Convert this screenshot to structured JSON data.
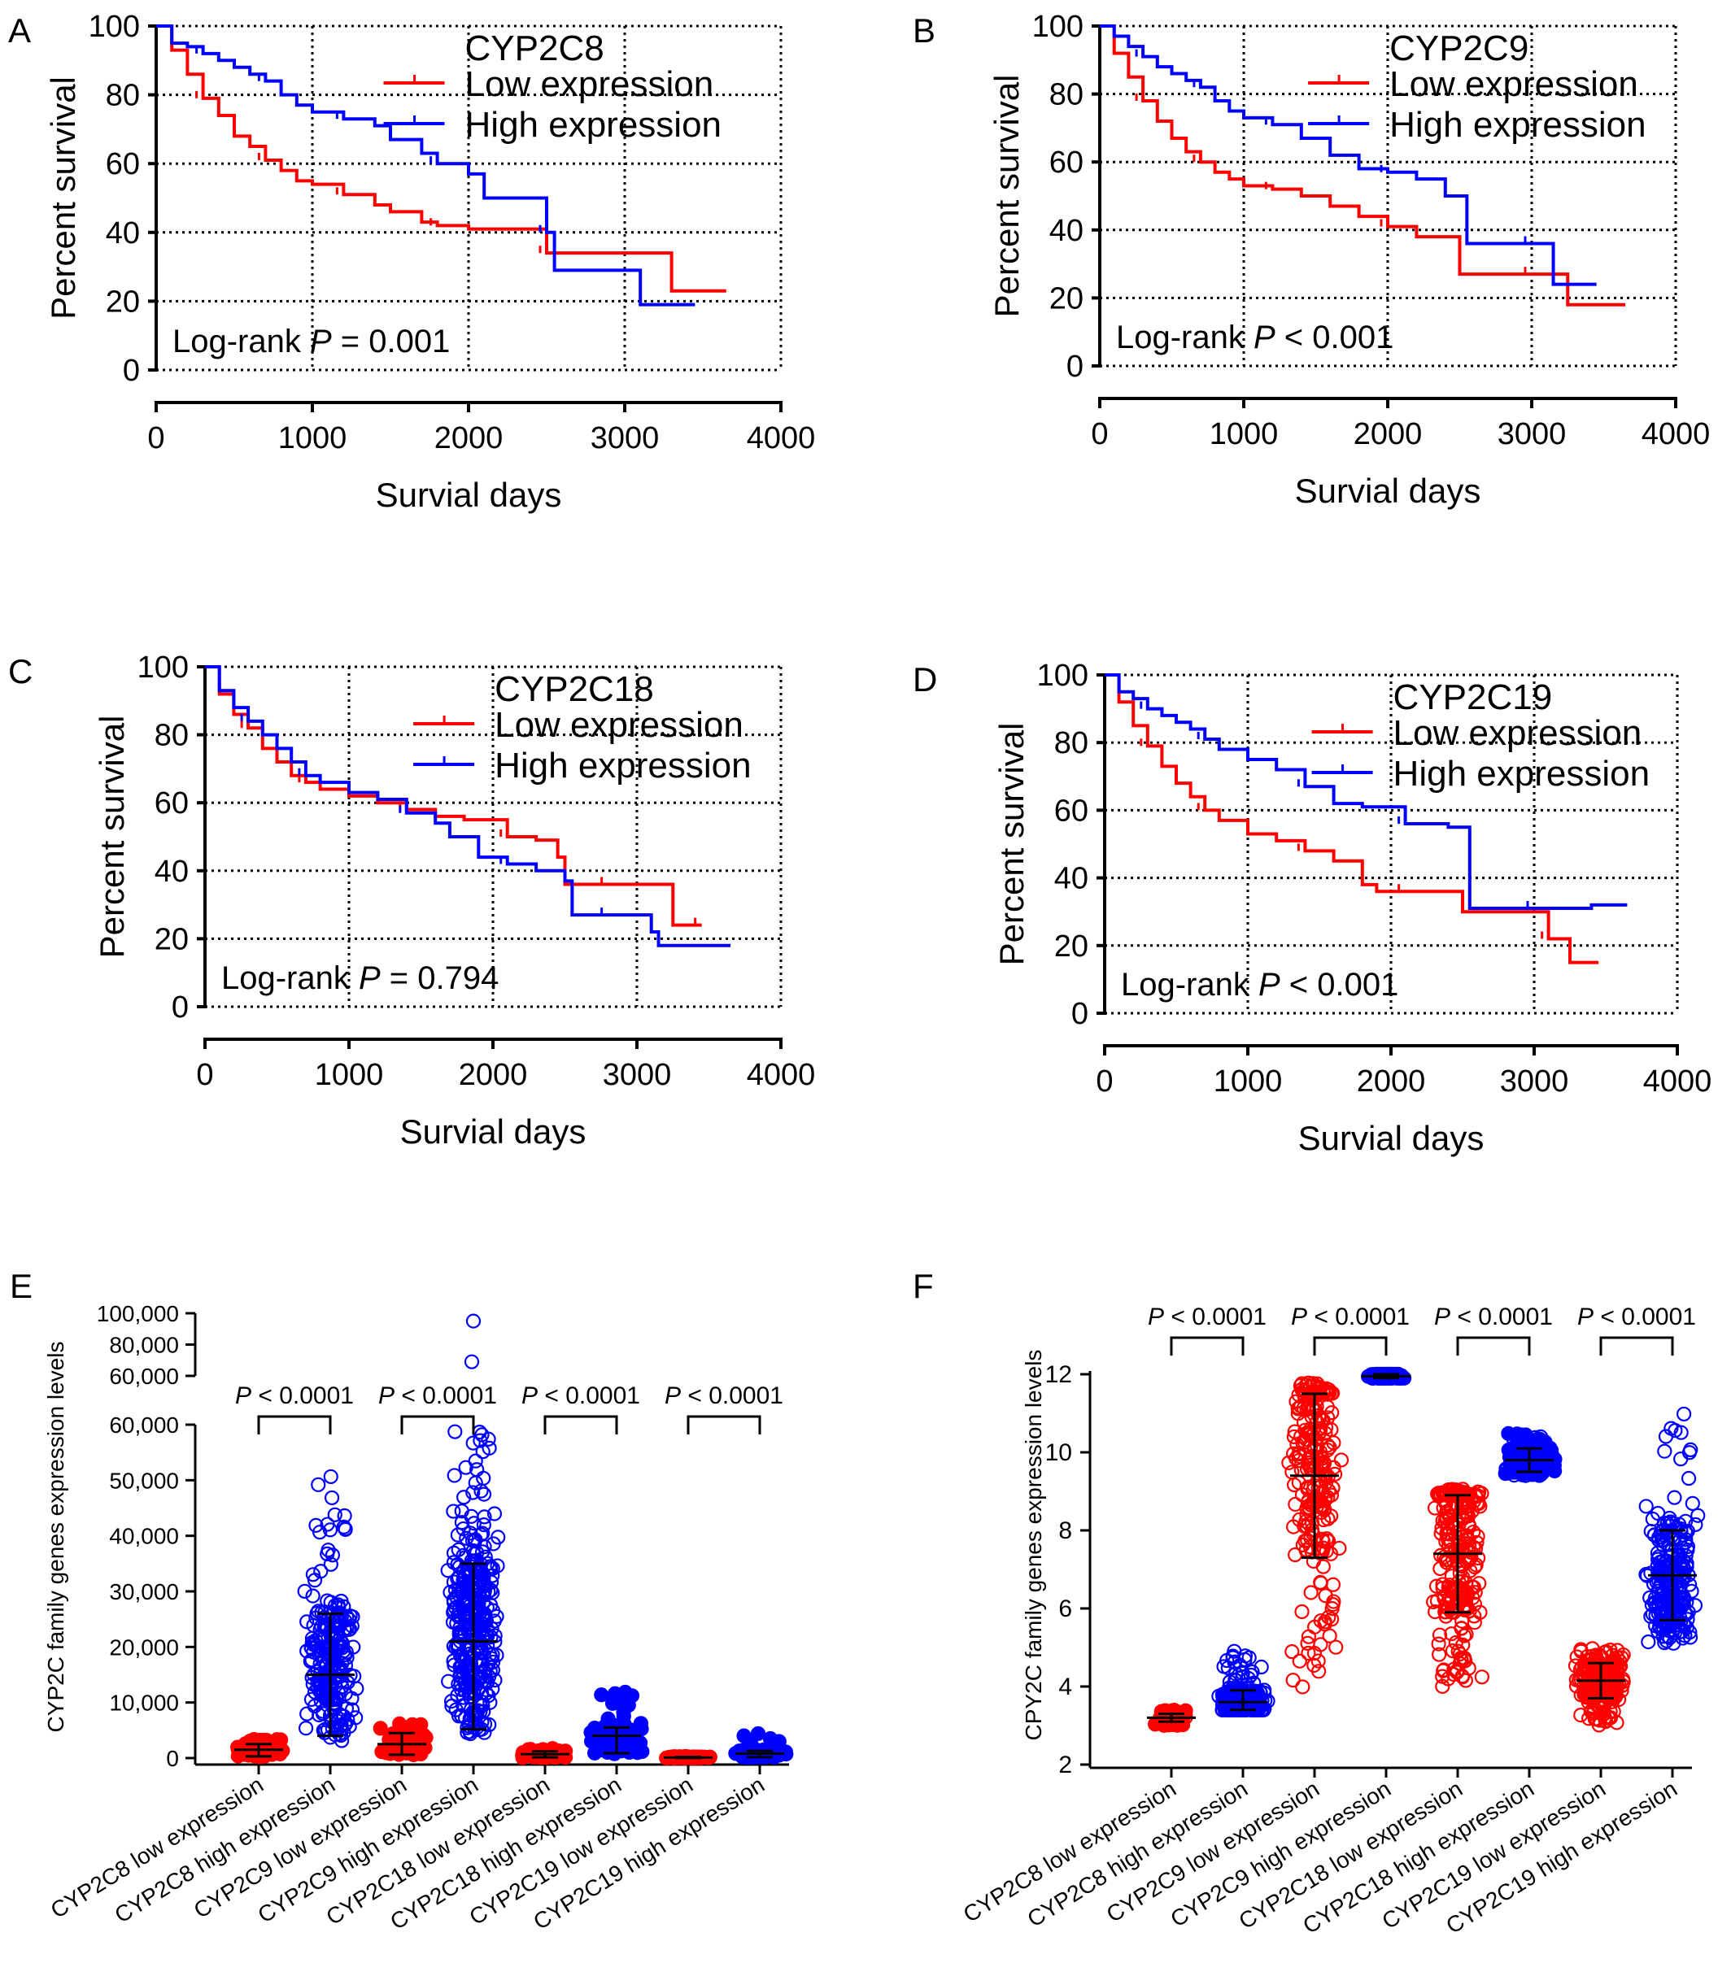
{
  "colors": {
    "low": "#ff0000",
    "high": "#0000ff",
    "axis": "#000000",
    "grid": "#000000"
  },
  "chart_data": [
    {
      "panel": "A",
      "type": "line",
      "title": "CYP2C8",
      "xlabel": "Survial days",
      "ylabel": "Percent survival",
      "xlim": [
        0,
        4000
      ],
      "ylim": [
        0,
        100
      ],
      "xticks": [
        "0",
        "1000",
        "2000",
        "3000",
        "4000"
      ],
      "yticks": [
        "0",
        "20",
        "40",
        "60",
        "80",
        "100"
      ],
      "grid": true,
      "legend_position": "top-right",
      "pvalue": {
        "prefix": "Log-rank ",
        "p": "P",
        "rest": " = 0.001"
      },
      "series": [
        {
          "name": "Low expression",
          "color": "#ff0000",
          "x": [
            0,
            100,
            200,
            300,
            400,
            500,
            600,
            700,
            800,
            900,
            1000,
            1200,
            1400,
            1500,
            1700,
            1800,
            2000,
            2200,
            2450,
            2500,
            3250,
            3300,
            3650
          ],
          "y": [
            100,
            93,
            86,
            79,
            74,
            68,
            65,
            61,
            58,
            55,
            54,
            51,
            48,
            46,
            43,
            42,
            41,
            41,
            41,
            34,
            34,
            23,
            23
          ]
        },
        {
          "name": "High expression",
          "color": "#0000ff",
          "x": [
            0,
            100,
            200,
            300,
            400,
            500,
            600,
            700,
            800,
            900,
            1000,
            1200,
            1400,
            1500,
            1700,
            1800,
            2000,
            2100,
            2300,
            2500,
            2550,
            3100,
            3450
          ],
          "y": [
            100,
            95,
            94,
            92,
            90,
            88,
            86,
            84,
            80,
            77,
            75,
            73,
            71,
            67,
            63,
            60,
            57,
            50,
            50,
            40,
            29,
            19,
            19
          ]
        }
      ]
    },
    {
      "panel": "B",
      "type": "line",
      "title": "CYP2C9",
      "xlabel": "Survial days",
      "ylabel": "Percent survival",
      "xlim": [
        0,
        4000
      ],
      "ylim": [
        0,
        100
      ],
      "xticks": [
        "0",
        "1000",
        "2000",
        "3000",
        "4000"
      ],
      "yticks": [
        "0",
        "20",
        "40",
        "60",
        "80",
        "100"
      ],
      "grid": true,
      "legend_position": "top-right",
      "pvalue": {
        "prefix": "Log-rank ",
        "p": "P",
        "rest": " < 0.001"
      },
      "series": [
        {
          "name": "Low expression",
          "color": "#ff0000",
          "x": [
            0,
            100,
            200,
            300,
            400,
            500,
            600,
            700,
            800,
            900,
            1000,
            1200,
            1400,
            1600,
            1800,
            2000,
            2200,
            2500,
            2800,
            3000,
            3250,
            3650
          ],
          "y": [
            100,
            92,
            85,
            78,
            72,
            67,
            63,
            60,
            57,
            55,
            53,
            52,
            50,
            47,
            44,
            41,
            38,
            27,
            27,
            27,
            18,
            18
          ]
        },
        {
          "name": "High expression",
          "color": "#0000ff",
          "x": [
            0,
            100,
            200,
            300,
            400,
            500,
            600,
            700,
            800,
            900,
            1000,
            1200,
            1400,
            1600,
            1800,
            2000,
            2200,
            2400,
            2550,
            3000,
            3150,
            3450
          ],
          "y": [
            100,
            97,
            94,
            91,
            88,
            86,
            84,
            82,
            78,
            75,
            73,
            71,
            67,
            62,
            58,
            57,
            55,
            50,
            36,
            36,
            24,
            24
          ]
        }
      ]
    },
    {
      "panel": "C",
      "type": "line",
      "title": "CYP2C18",
      "xlabel": "Survial days",
      "ylabel": "Percent survival",
      "xlim": [
        0,
        4000
      ],
      "ylim": [
        0,
        100
      ],
      "xticks": [
        "0",
        "1000",
        "2000",
        "3000",
        "4000"
      ],
      "yticks": [
        "0",
        "20",
        "40",
        "60",
        "80",
        "100"
      ],
      "grid": true,
      "legend_position": "top-right",
      "pvalue": {
        "prefix": "Log-rank ",
        "p": "P",
        "rest": " = 0.794"
      },
      "series": [
        {
          "name": "Low expression",
          "color": "#ff0000",
          "x": [
            0,
            100,
            200,
            300,
            400,
            500,
            600,
            700,
            800,
            1000,
            1200,
            1400,
            1600,
            1800,
            2000,
            2100,
            2300,
            2450,
            2500,
            2800,
            3050,
            3250,
            3300,
            3450
          ],
          "y": [
            100,
            92,
            86,
            82,
            76,
            72,
            68,
            66,
            64,
            62,
            60,
            58,
            56,
            55,
            55,
            50,
            49,
            44,
            36,
            36,
            36,
            24,
            24,
            24
          ]
        },
        {
          "name": "High expression",
          "color": "#0000ff",
          "x": [
            0,
            100,
            200,
            300,
            400,
            500,
            600,
            700,
            800,
            1000,
            1200,
            1400,
            1600,
            1700,
            1900,
            2100,
            2300,
            2500,
            2550,
            2800,
            3100,
            3150,
            3650
          ],
          "y": [
            100,
            93,
            88,
            84,
            80,
            76,
            72,
            68,
            66,
            63,
            61,
            57,
            54,
            50,
            44,
            42,
            40,
            37,
            27,
            27,
            22,
            18,
            18
          ]
        }
      ]
    },
    {
      "panel": "D",
      "type": "line",
      "title": "CYP2C19",
      "xlabel": "Survial days",
      "ylabel": "Percent survival",
      "xlim": [
        0,
        4000
      ],
      "ylim": [
        0,
        100
      ],
      "xticks": [
        "0",
        "1000",
        "2000",
        "3000",
        "4000"
      ],
      "yticks": [
        "0",
        "20",
        "40",
        "60",
        "80",
        "100"
      ],
      "grid": true,
      "legend_position": "top-right",
      "pvalue": {
        "prefix": "Log-rank ",
        "p": "P",
        "rest": " < 0.001"
      },
      "series": [
        {
          "name": "Low expression",
          "color": "#ff0000",
          "x": [
            0,
            100,
            200,
            300,
            400,
            500,
            600,
            700,
            800,
            1000,
            1200,
            1400,
            1600,
            1800,
            1900,
            2100,
            2300,
            2500,
            2800,
            3100,
            3200,
            3250,
            3450
          ],
          "y": [
            100,
            92,
            85,
            79,
            73,
            68,
            64,
            60,
            57,
            53,
            51,
            48,
            45,
            38,
            36,
            36,
            36,
            30,
            30,
            22,
            22,
            15,
            15
          ]
        },
        {
          "name": "High expression",
          "color": "#0000ff",
          "x": [
            0,
            100,
            200,
            300,
            400,
            500,
            600,
            700,
            800,
            1000,
            1200,
            1400,
            1600,
            1800,
            2000,
            2100,
            2400,
            2550,
            2800,
            3000,
            3400,
            3650
          ],
          "y": [
            100,
            95,
            93,
            90,
            88,
            86,
            84,
            81,
            78,
            75,
            72,
            67,
            62,
            61,
            61,
            56,
            55,
            31,
            31,
            31,
            32,
            32
          ]
        }
      ]
    },
    {
      "panel": "E",
      "type": "scatter",
      "ylabel": "CYP2C family genes expression levels",
      "categories": [
        "CYP2C8 low expression",
        "CYP2C8 high expression",
        "CYP2C9 low expression",
        "CYP2C9 high expression",
        "CYP2C18 low expression",
        "CYP2C18 high expression",
        "CYP2C19 low expression",
        "CYP2C19 high expression"
      ],
      "yticks_lower": [
        "0",
        "10,000",
        "20,000",
        "30,000",
        "40,000",
        "50,000",
        "60,000"
      ],
      "yticks_upper": [
        "60,000",
        "80,000",
        "100,000"
      ],
      "ylim_lower": [
        0,
        60000
      ],
      "ylim_upper": [
        60000,
        100000
      ],
      "medians": [
        1500,
        15000,
        2500,
        21000,
        700,
        4000,
        100,
        800
      ],
      "spread_low": [
        800,
        10000,
        1500,
        13000,
        300,
        2200,
        50,
        400
      ],
      "spread_high": [
        2500,
        26000,
        4500,
        35000,
        1200,
        5500,
        200,
        1300
      ],
      "max_values": [
        3500,
        55000,
        6500,
        95000,
        1800,
        12000,
        300,
        4500
      ],
      "series_colors": [
        "#ff0000",
        "#0000ff",
        "#ff0000",
        "#0000ff",
        "#ff0000",
        "#0000ff",
        "#ff0000",
        "#0000ff"
      ],
      "comparisons": [
        {
          "pairs": [
            0,
            1
          ],
          "label_p": "P",
          "label_rest": " < 0.0001"
        },
        {
          "pairs": [
            2,
            3
          ],
          "label_p": "P",
          "label_rest": " < 0.0001"
        },
        {
          "pairs": [
            4,
            5
          ],
          "label_p": "P",
          "label_rest": " < 0.0001"
        },
        {
          "pairs": [
            6,
            7
          ],
          "label_p": "P",
          "label_rest": " < 0.0001"
        }
      ]
    },
    {
      "panel": "F",
      "type": "scatter",
      "ylabel": "CPY2C family genes expression  levels",
      "categories": [
        "CYP2C8 low expression",
        "CYP2C8 high expression",
        "CYP2C9 low expression",
        "CYP2C9 high expression",
        "CYP2C18 low expression",
        "CYP2C18 high expression",
        "CYP2C19 low expression",
        "CYP2C19 high expression"
      ],
      "yticks": [
        "2",
        "4",
        "6",
        "8",
        "10",
        "12"
      ],
      "ylim": [
        2,
        12
      ],
      "medians": [
        3.2,
        3.6,
        9.4,
        11.95,
        7.4,
        9.8,
        4.15,
        6.85
      ],
      "spread_low": [
        3.1,
        3.4,
        7.3,
        11.9,
        5.9,
        9.5,
        3.7,
        5.7
      ],
      "spread_high": [
        3.3,
        3.9,
        11.5,
        12.0,
        8.9,
        10.1,
        4.6,
        8.0
      ],
      "min_values": [
        3.0,
        3.4,
        3.9,
        11.9,
        4.0,
        9.4,
        3.0,
        5.1
      ],
      "max_values": [
        3.4,
        5.0,
        11.8,
        12.0,
        9.1,
        10.5,
        5.0,
        11.1
      ],
      "series_colors": [
        "#ff0000",
        "#0000ff",
        "#ff0000",
        "#0000ff",
        "#ff0000",
        "#0000ff",
        "#ff0000",
        "#0000ff"
      ],
      "comparisons": [
        {
          "pairs": [
            0,
            1
          ],
          "label_p": "P",
          "label_rest": " < 0.0001"
        },
        {
          "pairs": [
            2,
            3
          ],
          "label_p": "P",
          "label_rest": " < 0.0001"
        },
        {
          "pairs": [
            4,
            5
          ],
          "label_p": "P",
          "label_rest": " < 0.0001"
        },
        {
          "pairs": [
            6,
            7
          ],
          "label_p": "P",
          "label_rest": " < 0.0001"
        }
      ]
    }
  ]
}
